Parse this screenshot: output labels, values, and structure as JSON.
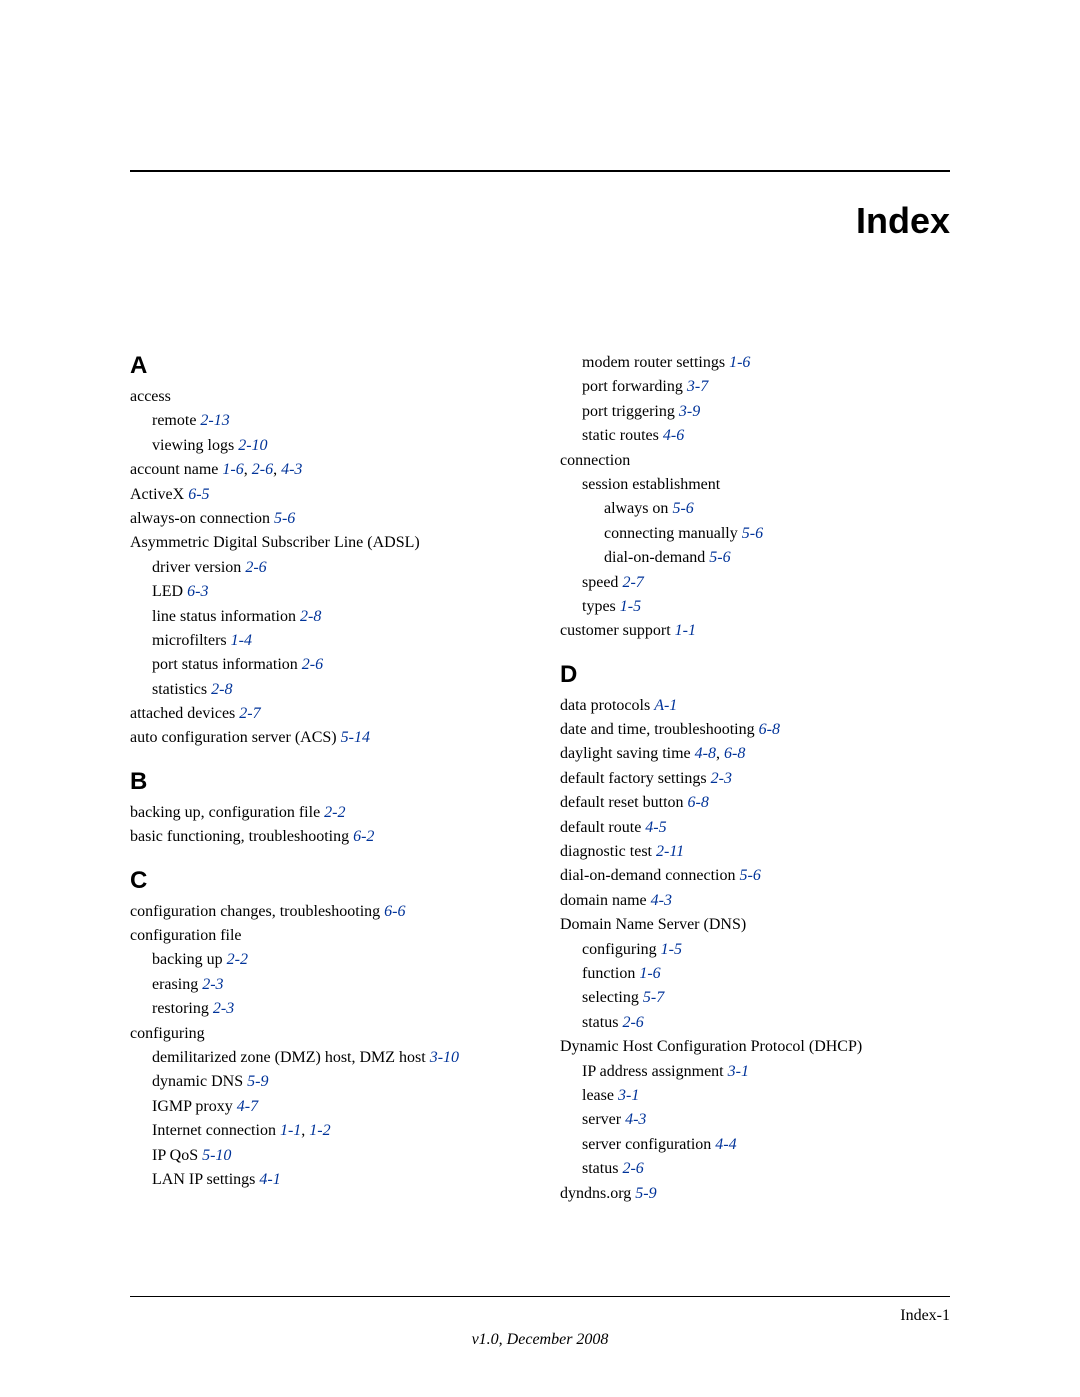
{
  "title": "Index",
  "page_number": "Index-1",
  "version_line": "v1.0, December 2008",
  "link_color": "#003399",
  "text_color": "#000000",
  "background_color": "#ffffff",
  "title_fontsize": 36,
  "letter_fontsize": 24,
  "body_fontsize": 16,
  "left": {
    "sections": [
      {
        "letter": "A",
        "entries": [
          {
            "indent": 0,
            "text": "access",
            "refs": []
          },
          {
            "indent": 1,
            "text": "remote",
            "refs": [
              "2-13"
            ]
          },
          {
            "indent": 1,
            "text": "viewing logs",
            "refs": [
              "2-10"
            ]
          },
          {
            "indent": 0,
            "text": "account name",
            "refs": [
              "1-6",
              "2-6",
              "4-3"
            ]
          },
          {
            "indent": 0,
            "text": "ActiveX",
            "refs": [
              "6-5"
            ]
          },
          {
            "indent": 0,
            "text": "always-on connection",
            "refs": [
              "5-6"
            ]
          },
          {
            "indent": 0,
            "text": "Asymmetric Digital Subscriber Line (ADSL)",
            "refs": []
          },
          {
            "indent": 1,
            "text": "driver version",
            "refs": [
              "2-6"
            ]
          },
          {
            "indent": 1,
            "text": "LED",
            "refs": [
              "6-3"
            ]
          },
          {
            "indent": 1,
            "text": "line status information",
            "refs": [
              "2-8"
            ]
          },
          {
            "indent": 1,
            "text": "microfilters",
            "refs": [
              "1-4"
            ]
          },
          {
            "indent": 1,
            "text": "port status information",
            "refs": [
              "2-6"
            ]
          },
          {
            "indent": 1,
            "text": "statistics",
            "refs": [
              "2-8"
            ]
          },
          {
            "indent": 0,
            "text": "attached devices",
            "refs": [
              "2-7"
            ]
          },
          {
            "indent": 0,
            "text": "auto configuration server (ACS)",
            "refs": [
              "5-14"
            ]
          }
        ]
      },
      {
        "letter": "B",
        "entries": [
          {
            "indent": 0,
            "text": "backing up, configuration file",
            "refs": [
              "2-2"
            ]
          },
          {
            "indent": 0,
            "text": "basic functioning, troubleshooting",
            "refs": [
              "6-2"
            ]
          }
        ]
      },
      {
        "letter": "C",
        "entries": [
          {
            "indent": 0,
            "text": "configuration changes, troubleshooting",
            "refs": [
              "6-6"
            ]
          },
          {
            "indent": 0,
            "text": "configuration file",
            "refs": []
          },
          {
            "indent": 1,
            "text": "backing up",
            "refs": [
              "2-2"
            ]
          },
          {
            "indent": 1,
            "text": "erasing",
            "refs": [
              "2-3"
            ]
          },
          {
            "indent": 1,
            "text": "restoring",
            "refs": [
              "2-3"
            ]
          },
          {
            "indent": 0,
            "text": "configuring",
            "refs": []
          },
          {
            "indent": 1,
            "text": "demilitarized zone (DMZ) host, DMZ host",
            "refs": [
              "3-10"
            ]
          },
          {
            "indent": 1,
            "text": "dynamic DNS",
            "refs": [
              "5-9"
            ]
          },
          {
            "indent": 1,
            "text": "IGMP proxy",
            "refs": [
              "4-7"
            ]
          },
          {
            "indent": 1,
            "text": "Internet connection",
            "refs": [
              "1-1",
              "1-2"
            ]
          },
          {
            "indent": 1,
            "text": "IP QoS",
            "refs": [
              "5-10"
            ]
          },
          {
            "indent": 1,
            "text": "LAN IP settings",
            "refs": [
              "4-1"
            ]
          }
        ]
      }
    ]
  },
  "right": {
    "sections": [
      {
        "letter": "",
        "entries": [
          {
            "indent": 1,
            "text": "modem router settings",
            "refs": [
              "1-6"
            ]
          },
          {
            "indent": 1,
            "text": "port forwarding",
            "refs": [
              "3-7"
            ]
          },
          {
            "indent": 1,
            "text": "port triggering",
            "refs": [
              "3-9"
            ]
          },
          {
            "indent": 1,
            "text": "static routes",
            "refs": [
              "4-6"
            ]
          },
          {
            "indent": 0,
            "text": "connection",
            "refs": []
          },
          {
            "indent": 1,
            "text": "session establishment",
            "refs": []
          },
          {
            "indent": 2,
            "text": "always on",
            "refs": [
              "5-6"
            ]
          },
          {
            "indent": 2,
            "text": "connecting manually",
            "refs": [
              "5-6"
            ]
          },
          {
            "indent": 2,
            "text": "dial-on-demand",
            "refs": [
              "5-6"
            ]
          },
          {
            "indent": 1,
            "text": "speed",
            "refs": [
              "2-7"
            ]
          },
          {
            "indent": 1,
            "text": "types",
            "refs": [
              "1-5"
            ]
          },
          {
            "indent": 0,
            "text": "customer support",
            "refs": [
              "1-1"
            ]
          }
        ]
      },
      {
        "letter": "D",
        "entries": [
          {
            "indent": 0,
            "text": "data protocols",
            "refs": [
              "A-1"
            ]
          },
          {
            "indent": 0,
            "text": "date and time, troubleshooting",
            "refs": [
              "6-8"
            ]
          },
          {
            "indent": 0,
            "text": "daylight saving time",
            "refs": [
              "4-8",
              "6-8"
            ]
          },
          {
            "indent": 0,
            "text": "default factory settings",
            "refs": [
              "2-3"
            ]
          },
          {
            "indent": 0,
            "text": "default reset button",
            "refs": [
              "6-8"
            ]
          },
          {
            "indent": 0,
            "text": "default route",
            "refs": [
              "4-5"
            ]
          },
          {
            "indent": 0,
            "text": "diagnostic test",
            "refs": [
              "2-11"
            ]
          },
          {
            "indent": 0,
            "text": "dial-on-demand connection",
            "refs": [
              "5-6"
            ]
          },
          {
            "indent": 0,
            "text": "domain name",
            "refs": [
              "4-3"
            ]
          },
          {
            "indent": 0,
            "text": "Domain Name Server (DNS)",
            "refs": []
          },
          {
            "indent": 1,
            "text": "configuring",
            "refs": [
              "1-5"
            ]
          },
          {
            "indent": 1,
            "text": "function",
            "refs": [
              "1-6"
            ]
          },
          {
            "indent": 1,
            "text": "selecting",
            "refs": [
              "5-7"
            ]
          },
          {
            "indent": 1,
            "text": "status",
            "refs": [
              "2-6"
            ]
          },
          {
            "indent": 0,
            "text": "Dynamic Host Configuration Protocol (DHCP)",
            "refs": []
          },
          {
            "indent": 1,
            "text": "IP address assignment",
            "refs": [
              "3-1"
            ]
          },
          {
            "indent": 1,
            "text": "lease",
            "refs": [
              "3-1"
            ]
          },
          {
            "indent": 1,
            "text": "server",
            "refs": [
              "4-3"
            ]
          },
          {
            "indent": 1,
            "text": "server configuration",
            "refs": [
              "4-4"
            ]
          },
          {
            "indent": 1,
            "text": "status",
            "refs": [
              "2-6"
            ]
          },
          {
            "indent": 0,
            "text": "dyndns.org",
            "refs": [
              "5-9"
            ]
          }
        ]
      }
    ]
  }
}
